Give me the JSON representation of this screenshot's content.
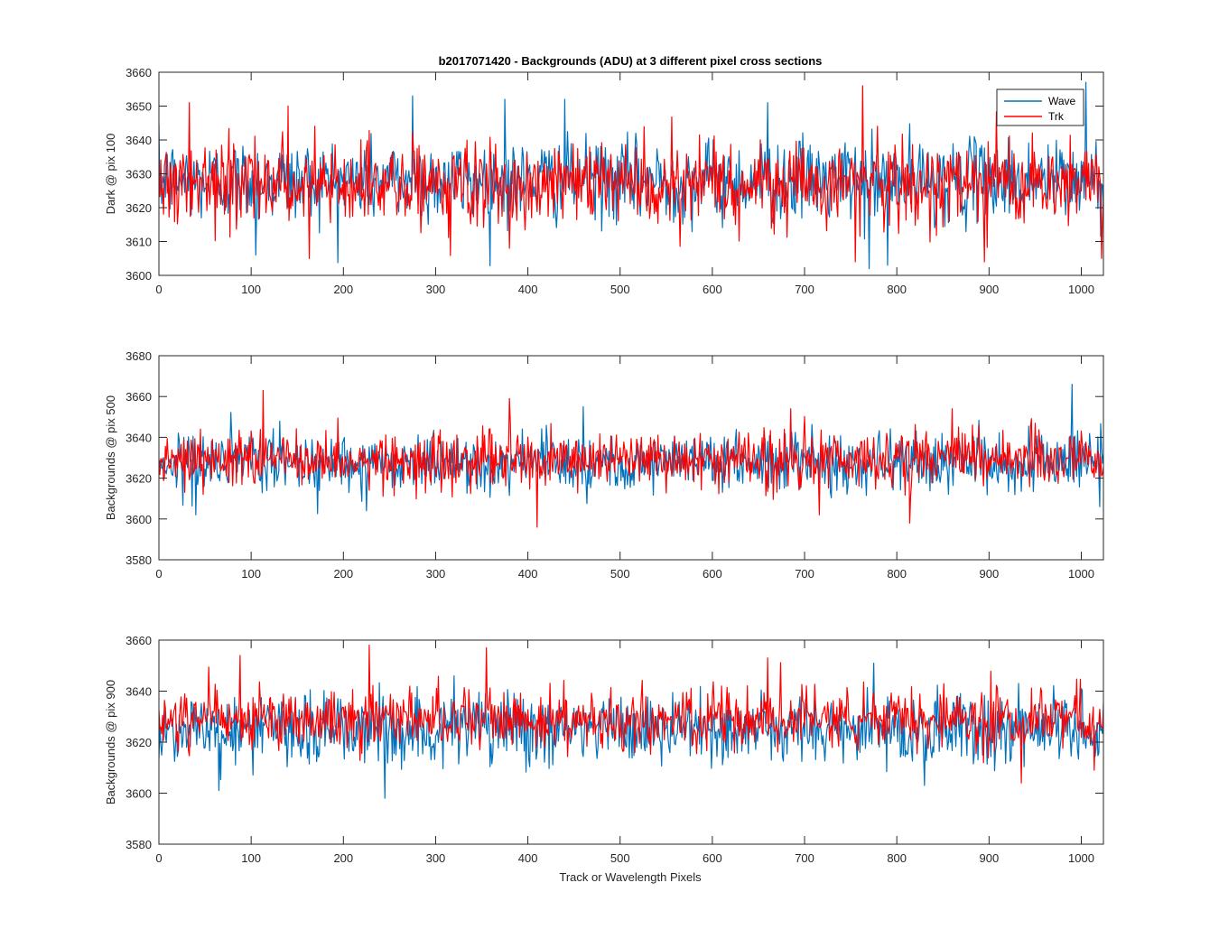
{
  "chart_data": {
    "type": "line",
    "title": "b2017071420 - Backgrounds (ADU) at 3 different pixel cross sections",
    "xlabel": "Track or Wavelength Pixels",
    "xlim": [
      0,
      1024
    ],
    "xticks": [
      0,
      100,
      200,
      300,
      400,
      500,
      600,
      700,
      800,
      900,
      1000
    ],
    "legend": {
      "position": "top-right",
      "entries": [
        "Wave",
        "Trk"
      ]
    },
    "colors": {
      "Wave": "#0072BD",
      "Trk": "#FF0000"
    },
    "grid": false,
    "panels": [
      {
        "ylabel": "Dark @ pix 100",
        "ylim": [
          3600,
          3660
        ],
        "yticks": [
          3600,
          3610,
          3620,
          3630,
          3640,
          3650,
          3660
        ],
        "series": [
          {
            "name": "Wave",
            "mean": 3628,
            "spread": 6,
            "peaks": [
              [
                105,
                3606
              ],
              [
                275,
                3653
              ],
              [
                375,
                3652
              ],
              [
                440,
                3652
              ],
              [
                660,
                3651
              ],
              [
                770,
                3602
              ],
              [
                790,
                3603
              ],
              [
                1005,
                3657
              ]
            ]
          },
          {
            "name": "Trk",
            "mean": 3627,
            "spread": 6,
            "peaks": [
              [
                33,
                3651
              ],
              [
                140,
                3650
              ],
              [
                163,
                3605
              ],
              [
                380,
                3608
              ],
              [
                755,
                3604
              ],
              [
                763,
                3656
              ],
              [
                895,
                3604
              ],
              [
                1022,
                3605
              ]
            ]
          }
        ]
      },
      {
        "ylabel": "Backgrounds @ pix 500",
        "ylim": [
          3580,
          3680
        ],
        "yticks": [
          3580,
          3600,
          3620,
          3640,
          3660,
          3680
        ],
        "series": [
          {
            "name": "Wave",
            "mean": 3628,
            "spread": 7,
            "peaks": [
              [
                40,
                3602
              ],
              [
                225,
                3604
              ],
              [
                460,
                3655
              ],
              [
                990,
                3666
              ],
              [
                1020,
                3606
              ]
            ]
          },
          {
            "name": "Trk",
            "mean": 3629,
            "spread": 7,
            "peaks": [
              [
                113,
                3663
              ],
              [
                380,
                3659
              ],
              [
                410,
                3596
              ],
              [
                685,
                3654
              ],
              [
                716,
                3602
              ],
              [
                814,
                3598
              ],
              [
                860,
                3654
              ]
            ]
          }
        ]
      },
      {
        "ylabel": "Backgrounds @ pix 900",
        "ylim": [
          3580,
          3660
        ],
        "yticks": [
          3580,
          3600,
          3620,
          3640,
          3660
        ],
        "series": [
          {
            "name": "Wave",
            "mean": 3625,
            "spread": 7,
            "peaks": [
              [
                65,
                3601
              ],
              [
                245,
                3598
              ],
              [
                320,
                3646
              ],
              [
                775,
                3651
              ],
              [
                830,
                3603
              ],
              [
                1000,
                3641
              ]
            ]
          },
          {
            "name": "Trk",
            "mean": 3629,
            "spread": 6,
            "peaks": [
              [
                88,
                3654
              ],
              [
                228,
                3658
              ],
              [
                355,
                3657
              ],
              [
                660,
                3653
              ],
              [
                935,
                3604
              ],
              [
                1014,
                3609
              ]
            ]
          }
        ]
      }
    ]
  }
}
